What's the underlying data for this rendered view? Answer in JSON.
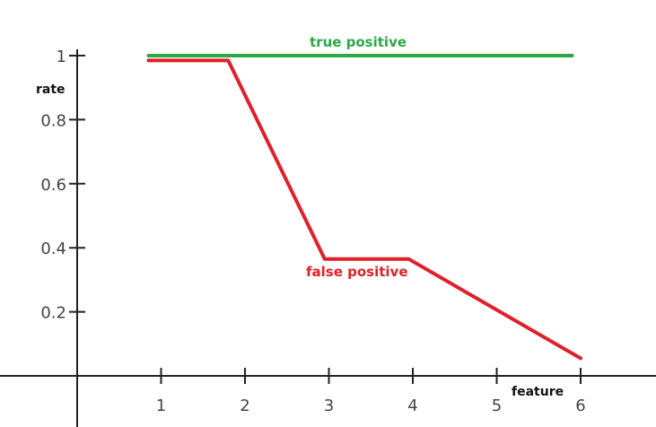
{
  "chart_data": {
    "type": "line",
    "xlabel": "feature",
    "ylabel": "rate",
    "xlim": [
      0,
      6
    ],
    "ylim": [
      0,
      1
    ],
    "x_ticks": [
      "1",
      "2",
      "3",
      "4",
      "5",
      "6"
    ],
    "y_ticks": [
      "0.2",
      "0.4",
      "0.6",
      "0.8",
      "1"
    ],
    "series": [
      {
        "name": "true positive",
        "color": "#2ca845",
        "points": [
          [
            0.85,
            1.0
          ],
          [
            5.9,
            1.0
          ]
        ]
      },
      {
        "name": "false positive",
        "color": "#e0202a",
        "points": [
          [
            0.85,
            0.985
          ],
          [
            1.8,
            0.985
          ],
          [
            2.95,
            0.365
          ],
          [
            3.95,
            0.365
          ],
          [
            6.0,
            0.055
          ]
        ]
      }
    ]
  }
}
